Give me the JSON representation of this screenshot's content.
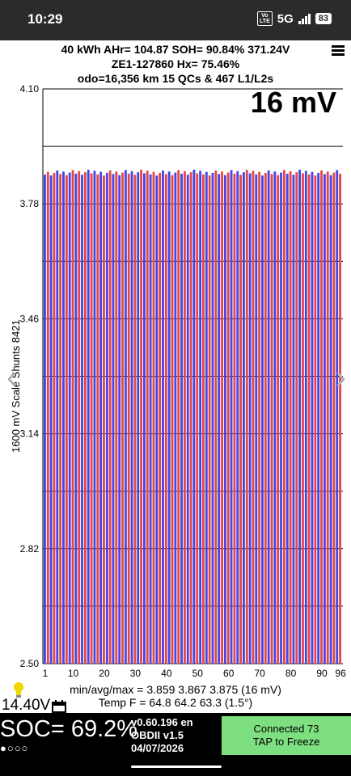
{
  "status_bar": {
    "time": "10:29",
    "volte": "Vo\nLTE",
    "network": "5G",
    "battery": "83"
  },
  "header": {
    "line1": "40 kWh  AHr= 104.87  SOH= 90.84%   371.24V",
    "line2": "ZE1-127860   Hx= 75.46%",
    "line3": "odo=16,356 km 15 QCs & 467 L1/L2s"
  },
  "chart_data": {
    "type": "bar",
    "ylabel": "1600 mV Scale  Shunts 8421",
    "ylim": [
      2.5,
      4.1
    ],
    "yticks": [
      "4.10",
      "3.78",
      "3.46",
      "3.14",
      "2.82",
      "2.50"
    ],
    "xticks": [
      1,
      10,
      20,
      30,
      40,
      50,
      60,
      70,
      80,
      90,
      96
    ],
    "cell_count": 96,
    "min": 3.859,
    "max": 3.875,
    "avg": 3.867,
    "spread_label": "16 mV",
    "colors": {
      "blue": "#4646e6",
      "red": "#e64646"
    }
  },
  "stats": {
    "line1": "min/avg/max = 3.859 3.867 3.875  (16 mV)",
    "line2": "Temp F = 64.8  64.2  63.3  (1.5°)"
  },
  "footer": {
    "voltage": "14.40V",
    "soc": "SOC= 69.2%",
    "dots": "●○○○",
    "version": "v0.60.196 en",
    "obd": "OBDII  v1.5",
    "date": "04/07/2026",
    "connected": "Connected 73",
    "tap": "TAP to Freeze"
  },
  "icons": {
    "menu": "hamburger-menu-icon",
    "bulb": "lightbulb-icon",
    "calendar": "calendar-icon",
    "prev": "chevron-left-icon",
    "next": "chevron-right-icon"
  }
}
